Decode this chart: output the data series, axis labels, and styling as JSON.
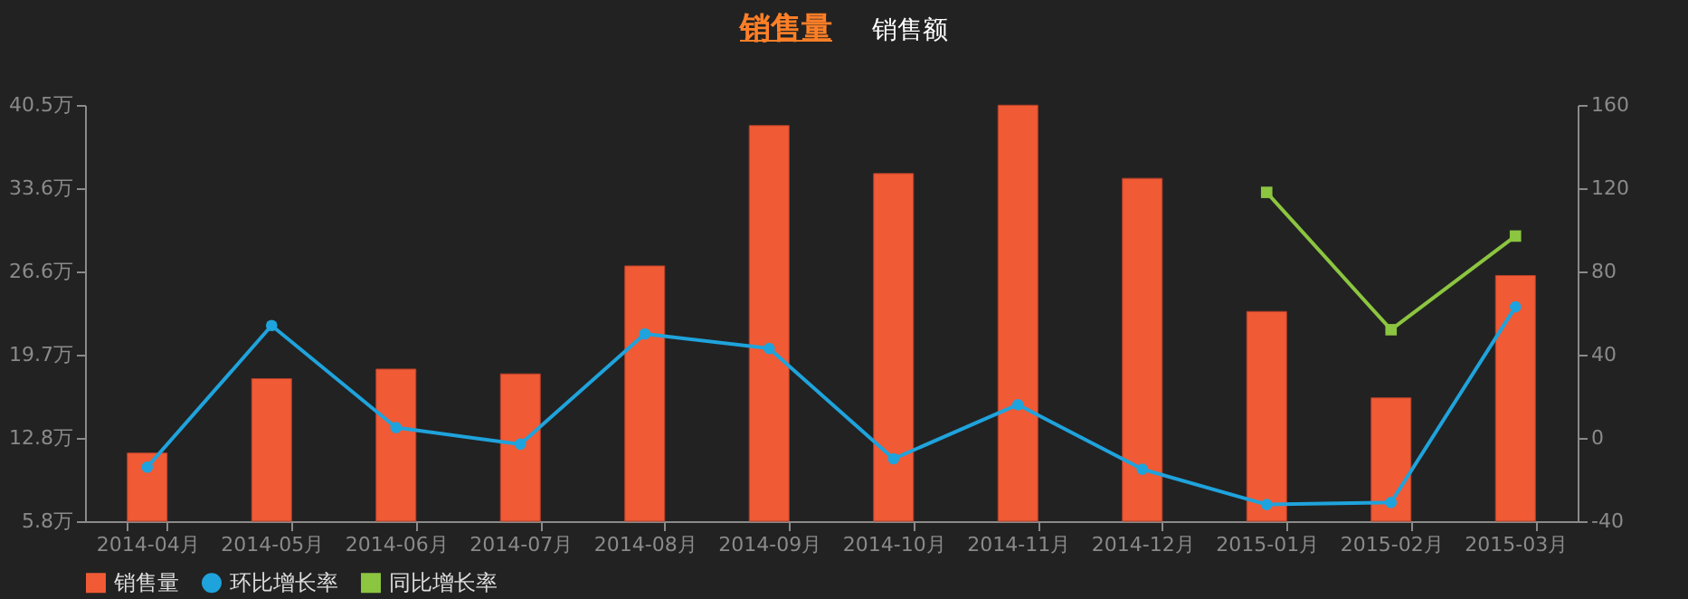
{
  "chart_data": {
    "type": "bar",
    "title": "销售量",
    "subtitle": "销售额",
    "categories": [
      "2014-04月",
      "2014-05月",
      "2014-06月",
      "2014-07月",
      "2014-08月",
      "2014-09月",
      "2014-10月",
      "2014-11月",
      "2014-12月",
      "2015-01月",
      "2015-02月",
      "2015-03月"
    ],
    "series": [
      {
        "name": "销售量",
        "color": "#f05a35",
        "values": [
          11.5,
          17.7,
          18.5,
          18.1,
          27.1,
          38.8,
          34.8,
          40.5,
          34.4,
          23.3,
          16.1,
          26.3
        ]
      },
      {
        "name": "环比增长率",
        "type": "line",
        "axis": "y2",
        "marker": "circle",
        "color": "#1fa3dc",
        "values": [
          -14,
          54,
          5,
          -3,
          50,
          43,
          -10,
          16,
          -15,
          -32,
          -31,
          63
        ]
      },
      {
        "name": "同比增长率",
        "type": "line",
        "axis": "y2",
        "marker": "square",
        "color": "#8cc540",
        "values": [
          null,
          null,
          null,
          null,
          null,
          null,
          null,
          null,
          null,
          118,
          52,
          97
        ]
      }
    ],
    "ylim": [
      5.82,
      40.52
    ],
    "yticks": [
      {
        "value": 5.82,
        "label": "5.8万"
      },
      {
        "value": 12.76,
        "label": "12.8万"
      },
      {
        "value": 19.7,
        "label": "19.7万"
      },
      {
        "value": 26.64,
        "label": "26.6万"
      },
      {
        "value": 33.58,
        "label": "33.6万"
      },
      {
        "value": 40.52,
        "label": "40.5万"
      }
    ],
    "y2lim": [
      -40,
      160
    ],
    "y2ticks": [
      -40,
      0,
      40,
      80,
      120,
      160
    ],
    "legend": "bottom"
  }
}
